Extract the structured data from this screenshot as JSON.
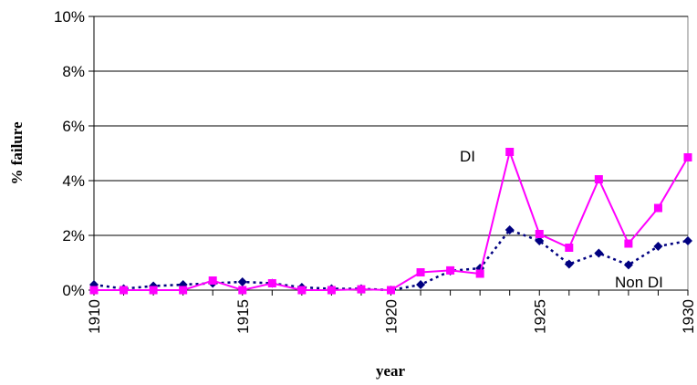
{
  "chart_data": {
    "type": "line",
    "xlabel": "year",
    "ylabel": "% failure",
    "xlim": [
      1910,
      1930
    ],
    "ylim": [
      0,
      10
    ],
    "x_ticks": [
      1910,
      1915,
      1920,
      1925,
      1930
    ],
    "y_ticks": [
      "0%",
      "2%",
      "4%",
      "6%",
      "8%",
      "10%"
    ],
    "y_tick_values": [
      0,
      2,
      4,
      6,
      8,
      10
    ],
    "grid": "horizontal",
    "legend": "none",
    "x": [
      1910,
      1911,
      1912,
      1913,
      1914,
      1915,
      1916,
      1917,
      1918,
      1919,
      1920,
      1921,
      1922,
      1923,
      1924,
      1925,
      1926,
      1927,
      1928,
      1929,
      1930
    ],
    "series": [
      {
        "name": "Non DI",
        "color": "#000080",
        "line_style": "dotted",
        "marker": "diamond",
        "values": [
          0.2,
          0.05,
          0.15,
          0.2,
          0.25,
          0.3,
          0.25,
          0.1,
          0.05,
          0.05,
          0.0,
          0.2,
          0.7,
          0.8,
          2.2,
          1.8,
          0.95,
          1.35,
          0.92,
          1.6,
          1.8
        ]
      },
      {
        "name": "DI",
        "color": "#ff00ff",
        "line_style": "solid",
        "marker": "square",
        "values": [
          0.0,
          0.0,
          0.0,
          0.0,
          0.35,
          0.0,
          0.25,
          0.0,
          0.0,
          0.03,
          0.0,
          0.65,
          0.72,
          0.6,
          5.05,
          2.05,
          1.55,
          4.05,
          1.7,
          3.0,
          4.85
        ]
      }
    ]
  }
}
